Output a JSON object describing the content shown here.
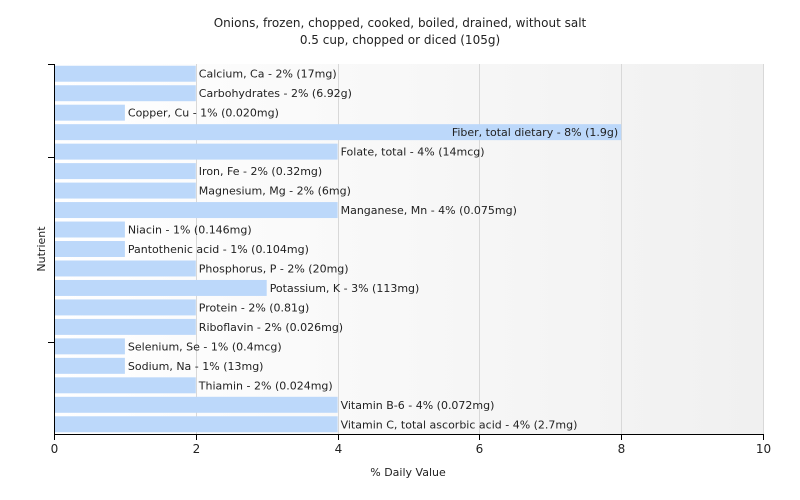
{
  "chart_data": {
    "type": "bar",
    "orientation": "horizontal",
    "title": "Onions, frozen, chopped, cooked, boiled, drained, without salt",
    "subtitle": "0.5 cup, chopped or diced (105g)",
    "xlabel": "% Daily Value",
    "ylabel": "Nutrient",
    "xlim": [
      0,
      10
    ],
    "xticks": [
      "0",
      "2",
      "4",
      "6",
      "8",
      "10"
    ],
    "grid": true,
    "colors": {
      "bar": "#bcd8fa",
      "grid": "#d8d8d8",
      "axis": "#000000"
    },
    "categories": [
      "Calcium, Ca",
      "Carbohydrates",
      "Copper, Cu",
      "Fiber, total dietary",
      "Folate, total",
      "Iron, Fe",
      "Magnesium, Mg",
      "Manganese, Mn",
      "Niacin",
      "Pantothenic acid",
      "Phosphorus, P",
      "Potassium, K",
      "Protein",
      "Riboflavin",
      "Selenium, Se",
      "Sodium, Na",
      "Thiamin",
      "Vitamin B-6",
      "Vitamin C, total ascorbic acid"
    ],
    "values": [
      2,
      2,
      1,
      8,
      4,
      2,
      2,
      4,
      1,
      1,
      2,
      3,
      2,
      2,
      1,
      1,
      2,
      4,
      4
    ],
    "labels": [
      "Calcium, Ca - 2% (17mg)",
      "Carbohydrates - 2% (6.92g)",
      "Copper, Cu - 1% (0.020mg)",
      "Fiber, total dietary - 8% (1.9g)",
      "Folate, total - 4% (14mcg)",
      "Iron, Fe - 2% (0.32mg)",
      "Magnesium, Mg - 2% (6mg)",
      "Manganese, Mn - 4% (0.075mg)",
      "Niacin - 1% (0.146mg)",
      "Pantothenic acid - 1% (0.104mg)",
      "Phosphorus, P - 2% (20mg)",
      "Potassium, K - 3% (113mg)",
      "Protein - 2% (0.81g)",
      "Riboflavin - 2% (0.026mg)",
      "Selenium, Se - 1% (0.4mcg)",
      "Sodium, Na - 1% (13mg)",
      "Thiamin - 2% (0.024mg)",
      "Vitamin B-6 - 4% (0.072mg)",
      "Vitamin C, total ascorbic acid - 4% (2.7mg)"
    ]
  }
}
